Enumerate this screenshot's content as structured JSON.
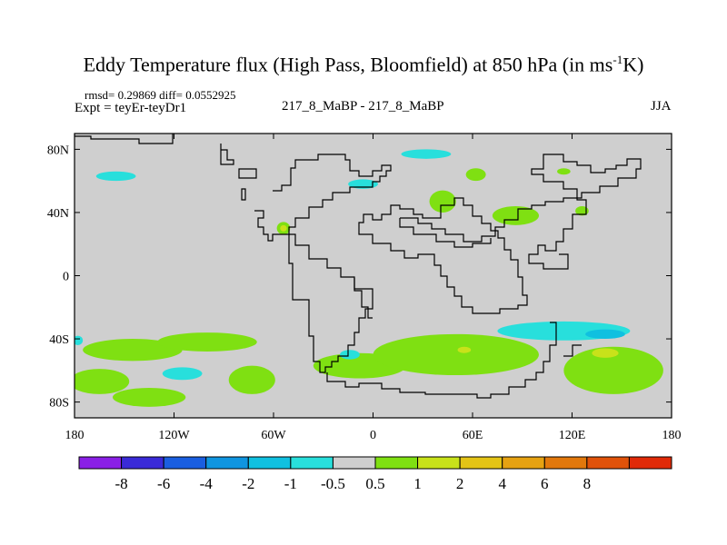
{
  "chart_data": {
    "type": "heatmap",
    "title_main": "Eddy Temperature flux (High Pass, Bloomfield) at 850 hPa (in ms",
    "title_sup": "-1",
    "title_tail": "K)",
    "stats": "rmsd= 0.29869  diff= 0.0552925",
    "experiment": "Expt = teyEr-teyDr1",
    "difference_label": "217_8_MaBP - 217_8_MaBP",
    "season": "JJA",
    "x_axis": {
      "range": [
        -180,
        180
      ],
      "ticks": [
        {
          "value": -180,
          "label": "180"
        },
        {
          "value": -120,
          "label": "120W"
        },
        {
          "value": -60,
          "label": "60W"
        },
        {
          "value": 0,
          "label": "0"
        },
        {
          "value": 60,
          "label": "60E"
        },
        {
          "value": 120,
          "label": "120E"
        },
        {
          "value": 180,
          "label": "180"
        }
      ]
    },
    "y_axis": {
      "range": [
        -90,
        90
      ],
      "ticks": [
        {
          "value": 80,
          "label": "80N"
        },
        {
          "value": 40,
          "label": "40N"
        },
        {
          "value": 0,
          "label": "0"
        },
        {
          "value": -40,
          "label": "40S"
        },
        {
          "value": -80,
          "label": "80S"
        }
      ]
    },
    "colorbar": {
      "colors": [
        "#8a1fe6",
        "#3a2ad8",
        "#1a5ee0",
        "#0f95e0",
        "#10c0e0",
        "#28dfdc",
        "#cfcfcf",
        "#7fe012",
        "#c8e21a",
        "#e4c416",
        "#e6a212",
        "#e2780c",
        "#e0520a",
        "#e02a08"
      ],
      "levels": [
        {
          "value": -8,
          "label": "-8"
        },
        {
          "value": -6,
          "label": "-6"
        },
        {
          "value": -4,
          "label": "-4"
        },
        {
          "value": -2,
          "label": "-2"
        },
        {
          "value": -1,
          "label": "-1"
        },
        {
          "value": -0.5,
          "label": "-0.5"
        },
        {
          "value": 0.5,
          "label": "0.5"
        },
        {
          "value": 1,
          "label": "1"
        },
        {
          "value": 2,
          "label": "2"
        },
        {
          "value": 4,
          "label": "4"
        },
        {
          "value": 6,
          "label": "6"
        },
        {
          "value": 8,
          "label": "8"
        }
      ]
    },
    "background_value_range": [
      -0.5,
      0.5
    ],
    "anomaly_regions": [
      {
        "name": "patch-south-pacific-west",
        "lon": -145,
        "lat": -47,
        "rlon": 30,
        "rlat": 7,
        "value": 0.8
      },
      {
        "name": "patch-south-pacific-band",
        "lon": -100,
        "lat": -42,
        "rlon": 30,
        "rlat": 6,
        "value": 0.8
      },
      {
        "name": "patch-south-pacific-far",
        "lon": -165,
        "lat": -67,
        "rlon": 18,
        "rlat": 8,
        "value": 0.8
      },
      {
        "name": "patch-south-pacific-low",
        "lon": -135,
        "lat": -77,
        "rlon": 22,
        "rlat": 6,
        "value": 0.7
      },
      {
        "name": "patch-south-east-pacific",
        "lon": -73,
        "lat": -66,
        "rlon": 14,
        "rlat": 9,
        "value": 0.7
      },
      {
        "name": "patch-south-pacific-blue",
        "lon": -115,
        "lat": -62,
        "rlon": 12,
        "rlat": 4,
        "value": -0.7
      },
      {
        "name": "patch-south-atlantic",
        "lon": -8,
        "lat": -57,
        "rlon": 28,
        "rlat": 8,
        "value": 0.8
      },
      {
        "name": "patch-south-atlantic-blue",
        "lon": -14,
        "lat": -50,
        "rlon": 6,
        "rlat": 3,
        "value": -0.8
      },
      {
        "name": "patch-south-indian",
        "lon": 50,
        "lat": -50,
        "rlon": 50,
        "rlat": 13,
        "value": 0.8
      },
      {
        "name": "patch-south-indian-core",
        "lon": 55,
        "lat": -47,
        "rlon": 4,
        "rlat": 2,
        "value": 1.5
      },
      {
        "name": "patch-indian-ocean-blue",
        "lon": 115,
        "lat": -35,
        "rlon": 40,
        "rlat": 6,
        "value": -0.8
      },
      {
        "name": "patch-indian-ocean-core",
        "lon": 140,
        "lat": -37,
        "rlon": 12,
        "rlat": 3,
        "value": -1.5
      },
      {
        "name": "patch-australia-south",
        "lon": 145,
        "lat": -60,
        "rlon": 30,
        "rlat": 15,
        "value": 0.8
      },
      {
        "name": "patch-australia-core",
        "lon": 140,
        "lat": -49,
        "rlon": 8,
        "rlat": 3,
        "value": 1.5
      },
      {
        "name": "patch-north-pacific-east",
        "lon": -155,
        "lat": 63,
        "rlon": 12,
        "rlat": 3,
        "value": -0.8
      },
      {
        "name": "patch-arctic-blue",
        "lon": 32,
        "lat": 77,
        "rlon": 15,
        "rlat": 3,
        "value": -0.8
      },
      {
        "name": "patch-barents-blue",
        "lon": -6,
        "lat": 58,
        "rlon": 9,
        "rlat": 3,
        "value": -0.8
      },
      {
        "name": "patch-siberia-north",
        "lon": 62,
        "lat": 64,
        "rlon": 6,
        "rlat": 4,
        "value": 0.8
      },
      {
        "name": "patch-west-asia",
        "lon": 42,
        "lat": 47,
        "rlon": 8,
        "rlat": 7,
        "value": 0.8
      },
      {
        "name": "patch-central-asia",
        "lon": 86,
        "lat": 38,
        "rlon": 14,
        "rlat": 6,
        "value": 0.8
      },
      {
        "name": "patch-asia-north",
        "lon": 115,
        "lat": 66,
        "rlon": 4,
        "rlat": 2,
        "value": 0.8
      },
      {
        "name": "patch-east-asia",
        "lon": 126,
        "lat": 41,
        "rlon": 4,
        "rlat": 3,
        "value": 0.8
      },
      {
        "name": "patch-north-america",
        "lon": -54,
        "lat": 30,
        "rlon": 4,
        "rlat": 4,
        "value": 0.8
      },
      {
        "name": "patch-north-america-core",
        "lon": -54,
        "lat": 30,
        "rlon": 2,
        "rlat": 2,
        "value": 1.5
      },
      {
        "name": "patch-pacific-coast",
        "lon": -178,
        "lat": -41,
        "rlon": 3,
        "rlat": 3,
        "value": -0.8
      }
    ]
  }
}
